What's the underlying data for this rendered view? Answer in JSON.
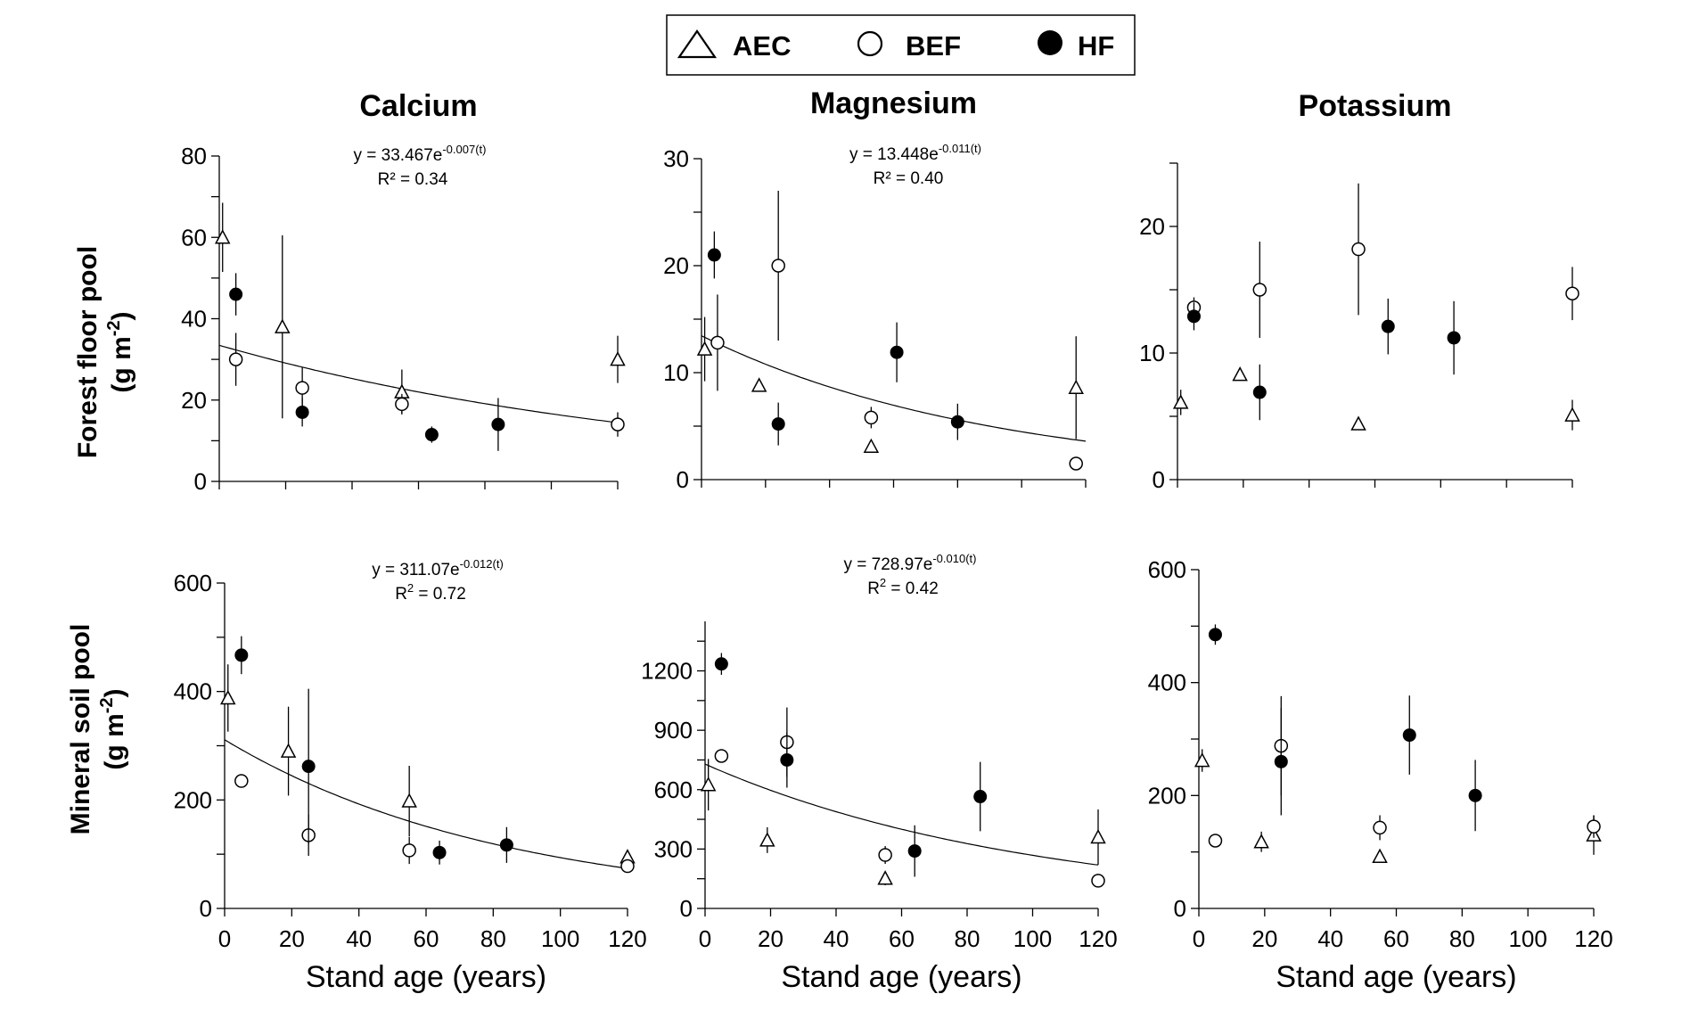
{
  "legend": {
    "items": [
      {
        "label": "AEC",
        "marker": "triangle"
      },
      {
        "label": "BEF",
        "marker": "open-circle"
      },
      {
        "label": "HF",
        "marker": "filled-circle"
      }
    ]
  },
  "row_labels": [
    {
      "line1": "Forest floor pool",
      "line2_base": "(g m",
      "line2_sup": "-2",
      "line2_end": ")"
    },
    {
      "line1": "Mineral soil pool",
      "line2_base": "(g m",
      "line2_sup": "-2",
      "line2_end": ")"
    }
  ],
  "colors": {
    "ink": "#000000",
    "open_fill": "#ffffff"
  },
  "chart_data": [
    {
      "type": "scatter",
      "title": "Calcium",
      "xlabel": "",
      "ylabel": "",
      "xlim": [
        0,
        120
      ],
      "ylim": [
        0,
        80
      ],
      "yticks": [
        0,
        20,
        40,
        60,
        80
      ],
      "xticks": [],
      "show_x_tick_labels": false,
      "grid": false,
      "fit": {
        "a": 33.467,
        "b": -0.007,
        "eq_main": "y = 33.467e",
        "eq_sup": "-0.007(t)",
        "r2_main": "R² = 0.34",
        "r2_sup": ""
      },
      "series": [
        {
          "name": "AEC",
          "marker": "triangle",
          "points": [
            {
              "x": 1,
              "y": 60,
              "yerr": 8.5
            },
            {
              "x": 19,
              "y": 38,
              "yerr": 22.5
            },
            {
              "x": 55,
              "y": 22,
              "yerr": 5.5
            },
            {
              "x": 120,
              "y": 30,
              "yerr": 5.8
            }
          ]
        },
        {
          "name": "BEF",
          "marker": "open-circle",
          "points": [
            {
              "x": 5,
              "y": 30,
              "yerr": 6.5
            },
            {
              "x": 25,
              "y": 23,
              "yerr": 5
            },
            {
              "x": 55,
              "y": 19,
              "yerr": 2.5
            },
            {
              "x": 120,
              "y": 14,
              "yerr": 3
            }
          ]
        },
        {
          "name": "HF",
          "marker": "filled-circle",
          "points": [
            {
              "x": 5,
              "y": 46,
              "yerr": 5.2
            },
            {
              "x": 25,
              "y": 17,
              "yerr": 3.5
            },
            {
              "x": 64,
              "y": 11.5,
              "yerr": 2
            },
            {
              "x": 84,
              "y": 14,
              "yerr": 6.5
            }
          ]
        }
      ]
    },
    {
      "type": "scatter",
      "title": "Magnesium",
      "xlabel": "",
      "ylabel": "",
      "xlim": [
        0,
        120
      ],
      "ylim": [
        0,
        30
      ],
      "yticks": [
        0,
        10,
        20,
        30
      ],
      "xticks": [],
      "show_x_tick_labels": false,
      "grid": false,
      "fit": {
        "a": 13.448,
        "b": -0.011,
        "eq_main": "y = 13.448e",
        "eq_sup": "-0.011(t)",
        "r2_main": "R² = 0.40",
        "r2_sup": ""
      },
      "series": [
        {
          "name": "AEC",
          "marker": "triangle",
          "points": [
            {
              "x": 1,
              "y": 12.2,
              "yerr": 3
            },
            {
              "x": 18,
              "y": 8.8,
              "yerr": 0.3
            },
            {
              "x": 53,
              "y": 3.1,
              "yerr": 0.3
            },
            {
              "x": 117,
              "y": 8.6,
              "yerr": 4.8
            }
          ]
        },
        {
          "name": "BEF",
          "marker": "open-circle",
          "points": [
            {
              "x": 5,
              "y": 12.8,
              "yerr": 4.5
            },
            {
              "x": 24,
              "y": 20,
              "yerr": 7
            },
            {
              "x": 53,
              "y": 5.8,
              "yerr": 1
            },
            {
              "x": 117,
              "y": 1.5,
              "yerr": 0.2
            }
          ]
        },
        {
          "name": "HF",
          "marker": "filled-circle",
          "points": [
            {
              "x": 4,
              "y": 21,
              "yerr": 2.2
            },
            {
              "x": 24,
              "y": 5.2,
              "yerr": 2
            },
            {
              "x": 61,
              "y": 11.9,
              "yerr": 2.8
            },
            {
              "x": 80,
              "y": 5.4,
              "yerr": 1.7
            }
          ]
        }
      ]
    },
    {
      "type": "scatter",
      "title": "Potassium",
      "xlabel": "",
      "ylabel": "",
      "xlim": [
        0,
        120
      ],
      "ylim": [
        0,
        25
      ],
      "yticks": [
        0,
        10,
        20
      ],
      "xticks": [],
      "show_x_tick_labels": false,
      "grid": false,
      "fit": null,
      "series": [
        {
          "name": "AEC",
          "marker": "triangle",
          "points": [
            {
              "x": 1,
              "y": 6.1,
              "yerr": 1
            },
            {
              "x": 19,
              "y": 8.3,
              "yerr": 0.3
            },
            {
              "x": 55,
              "y": 4.4,
              "yerr": 0.3
            },
            {
              "x": 120,
              "y": 5.1,
              "yerr": 1.2
            }
          ]
        },
        {
          "name": "BEF",
          "marker": "open-circle",
          "points": [
            {
              "x": 5,
              "y": 13.6,
              "yerr": 0.8
            },
            {
              "x": 25,
              "y": 15,
              "yerr": 3.8
            },
            {
              "x": 55,
              "y": 18.2,
              "yerr": 5.2
            },
            {
              "x": 120,
              "y": 14.7,
              "yerr": 2.1
            }
          ]
        },
        {
          "name": "HF",
          "marker": "filled-circle",
          "points": [
            {
              "x": 5,
              "y": 12.9,
              "yerr": 1.1
            },
            {
              "x": 25,
              "y": 6.9,
              "yerr": 2.2
            },
            {
              "x": 64,
              "y": 12.1,
              "yerr": 2.2
            },
            {
              "x": 84,
              "y": 11.2,
              "yerr": 2.9
            }
          ]
        }
      ]
    },
    {
      "type": "scatter",
      "title": "",
      "xlabel": "Stand age (years)",
      "ylabel": "",
      "xlim": [
        0,
        120
      ],
      "ylim": [
        0,
        600
      ],
      "yticks": [
        0,
        200,
        400,
        600
      ],
      "xticks": [
        0,
        20,
        40,
        60,
        80,
        100,
        120
      ],
      "show_x_tick_labels": true,
      "grid": false,
      "fit": {
        "a": 311.07,
        "b": -0.012,
        "eq_main": "y = 311.07e",
        "eq_sup": "-0.012(t)",
        "r2_main": "R",
        "r2_sup": "2",
        "r2_end": " = 0.72"
      },
      "series": [
        {
          "name": "AEC",
          "marker": "triangle",
          "points": [
            {
              "x": 1,
              "y": 388,
              "yerr": 62
            },
            {
              "x": 19,
              "y": 290,
              "yerr": 82
            },
            {
              "x": 55,
              "y": 198,
              "yerr": 65
            },
            {
              "x": 120,
              "y": 95,
              "yerr": 10
            }
          ]
        },
        {
          "name": "BEF",
          "marker": "open-circle",
          "points": [
            {
              "x": 5,
              "y": 235,
              "yerr": 8
            },
            {
              "x": 25,
              "y": 135,
              "yerr": 38
            },
            {
              "x": 55,
              "y": 107,
              "yerr": 25
            },
            {
              "x": 120,
              "y": 78,
              "yerr": 8
            }
          ]
        },
        {
          "name": "HF",
          "marker": "filled-circle",
          "points": [
            {
              "x": 5,
              "y": 467,
              "yerr": 35
            },
            {
              "x": 25,
              "y": 262,
              "yerr": 143
            },
            {
              "x": 64,
              "y": 103,
              "yerr": 22
            },
            {
              "x": 84,
              "y": 117,
              "yerr": 33
            }
          ]
        }
      ]
    },
    {
      "type": "scatter",
      "title": "",
      "xlabel": "Stand age (years)",
      "ylabel": "",
      "xlim": [
        0,
        120
      ],
      "ylim": [
        0,
        1450
      ],
      "yticks": [
        0,
        300,
        600,
        900,
        1200
      ],
      "xticks": [
        0,
        20,
        40,
        60,
        80,
        100,
        120
      ],
      "show_x_tick_labels": true,
      "grid": false,
      "fit": {
        "a": 728.97,
        "b": -0.01,
        "eq_main": "y = 728.97e",
        "eq_sup": "-0.010(t)",
        "r2_main": "R",
        "r2_sup": "2",
        "r2_end": " = 0.42"
      },
      "series": [
        {
          "name": "AEC",
          "marker": "triangle",
          "points": [
            {
              "x": 1,
              "y": 625,
              "yerr": 130
            },
            {
              "x": 19,
              "y": 345,
              "yerr": 65
            },
            {
              "x": 55,
              "y": 152,
              "yerr": 35
            },
            {
              "x": 120,
              "y": 360,
              "yerr": 140
            }
          ]
        },
        {
          "name": "BEF",
          "marker": "open-circle",
          "points": [
            {
              "x": 5,
              "y": 770,
              "yerr": 15
            },
            {
              "x": 25,
              "y": 840,
              "yerr": 175
            },
            {
              "x": 55,
              "y": 270,
              "yerr": 45
            },
            {
              "x": 120,
              "y": 140,
              "yerr": 15
            }
          ]
        },
        {
          "name": "HF",
          "marker": "filled-circle",
          "points": [
            {
              "x": 5,
              "y": 1235,
              "yerr": 55
            },
            {
              "x": 25,
              "y": 750,
              "yerr": 140
            },
            {
              "x": 64,
              "y": 290,
              "yerr": 130
            },
            {
              "x": 84,
              "y": 565,
              "yerr": 175
            }
          ]
        }
      ]
    },
    {
      "type": "scatter",
      "title": "",
      "xlabel": "Stand age (years)",
      "ylabel": "",
      "xlim": [
        0,
        120
      ],
      "ylim": [
        0,
        600
      ],
      "yticks": [
        0,
        200,
        400,
        600
      ],
      "xticks": [
        0,
        20,
        40,
        60,
        80,
        100,
        120
      ],
      "show_x_tick_labels": true,
      "grid": false,
      "fit": null,
      "series": [
        {
          "name": "AEC",
          "marker": "triangle",
          "points": [
            {
              "x": 1,
              "y": 262,
              "yerr": 20
            },
            {
              "x": 19,
              "y": 118,
              "yerr": 18
            },
            {
              "x": 55,
              "y": 92,
              "yerr": 8
            },
            {
              "x": 120,
              "y": 130,
              "yerr": 35
            }
          ]
        },
        {
          "name": "BEF",
          "marker": "open-circle",
          "points": [
            {
              "x": 5,
              "y": 120,
              "yerr": 8
            },
            {
              "x": 25,
              "y": 288,
              "yerr": 88
            },
            {
              "x": 55,
              "y": 143,
              "yerr": 22
            },
            {
              "x": 120,
              "y": 145,
              "yerr": 20
            }
          ]
        },
        {
          "name": "HF",
          "marker": "filled-circle",
          "points": [
            {
              "x": 5,
              "y": 485,
              "yerr": 18
            },
            {
              "x": 25,
              "y": 260,
              "yerr": 95
            },
            {
              "x": 64,
              "y": 307,
              "yerr": 70
            },
            {
              "x": 84,
              "y": 200,
              "yerr": 63
            }
          ]
        }
      ]
    }
  ]
}
